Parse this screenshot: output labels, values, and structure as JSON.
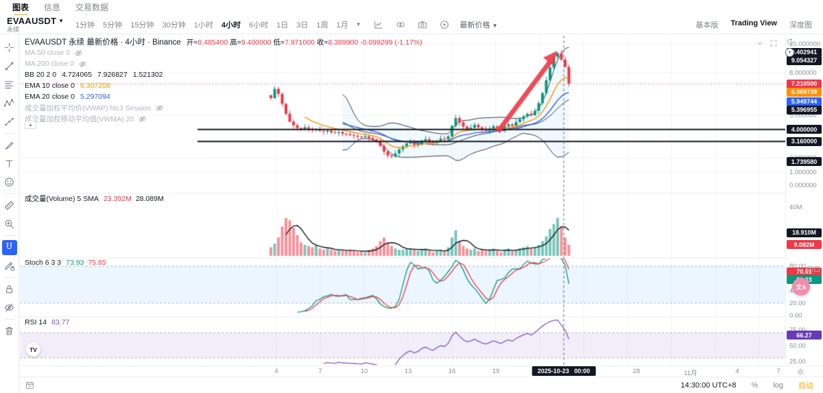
{
  "topnav": {
    "tabs": [
      {
        "label": "图表",
        "active": true
      },
      {
        "label": "信息",
        "active": false
      },
      {
        "label": "交易数据",
        "active": false
      }
    ]
  },
  "toolbar": {
    "symbol": "EVAAUSDT",
    "symbol_type": "永续",
    "intervals": [
      {
        "label": "1分钟"
      },
      {
        "label": "5分钟"
      },
      {
        "label": "15分钟"
      },
      {
        "label": "30分钟"
      },
      {
        "label": "1小时"
      },
      {
        "label": "4小时",
        "active": true
      },
      {
        "label": "6小时"
      },
      {
        "label": "1日"
      },
      {
        "label": "3日"
      },
      {
        "label": "1周"
      },
      {
        "label": "1月"
      }
    ],
    "icons": [
      {
        "name": "indicators-icon",
        "glyph": "chartline"
      },
      {
        "name": "compare-overlay-icon",
        "glyph": "compare"
      },
      {
        "name": "camera-snapshot-icon",
        "glyph": "camera"
      },
      {
        "name": "alert-plus-icon",
        "glyph": "alertPlus"
      }
    ],
    "price_source": "最新价格",
    "right_tabs": [
      {
        "label": "基本版",
        "active": false
      },
      {
        "label": "Trading View",
        "active": true
      },
      {
        "label": "深度图",
        "active": false
      }
    ]
  },
  "sidebar": {
    "tools": [
      "crosshair",
      "trendline",
      "fib",
      "pattern",
      "forecast",
      "brush",
      "text",
      "emoji",
      "ruler",
      "zoom",
      "magnet",
      "pencil-lock",
      "lock",
      "eye-off",
      "trash"
    ],
    "active_tool": "magnet"
  },
  "legend": {
    "symbol_line": "EVAAUSDT 永续 最新价格 · 4小时 · Binance",
    "ohlc": [
      {
        "k": "开=",
        "v": "8.485400"
      },
      {
        "k": "高=",
        "v": "9.400000"
      },
      {
        "k": "低=",
        "v": "7.971000"
      },
      {
        "k": "收=",
        "v": "8.389900"
      }
    ],
    "change": "-0.099299 (-1.17%)",
    "indicators": [
      {
        "label": "MA 50 close 0",
        "hidden": true,
        "values": []
      },
      {
        "label": "MA 200 close 0",
        "hidden": true,
        "values": []
      },
      {
        "label": "BB 20 2 0",
        "hidden": false,
        "values": [
          {
            "text": "4.724065",
            "color": "#131722"
          },
          {
            "text": "7.926827",
            "color": "#131722"
          },
          {
            "text": "1.521302",
            "color": "#131722"
          }
        ]
      },
      {
        "label": "EMA 10 close 0",
        "hidden": false,
        "values": [
          {
            "text": "6.307208",
            "color": "#ff9100"
          }
        ]
      },
      {
        "label": "EMA 20 close 0",
        "hidden": false,
        "values": [
          {
            "text": "5.297094",
            "color": "#2962ff"
          }
        ]
      },
      {
        "label": "成交量加权平均价(VWAP) hlc3 Session",
        "hidden": true,
        "values": []
      },
      {
        "label": "成交量加权移动平均值(VWMA) 20",
        "hidden": true,
        "values": []
      }
    ]
  },
  "panes": {
    "volume": {
      "label": "成交量(Volume) 5 SMA",
      "values": [
        {
          "text": "23.392M",
          "color": "#f23645"
        },
        {
          "text": "28.089M",
          "color": "#131722"
        }
      ],
      "axis": [
        {
          "text": "40M",
          "m": 40
        }
      ],
      "badges": [
        {
          "text": "18.910M",
          "bg": "#131722",
          "m": 18.91
        },
        {
          "text": "9.082M",
          "bg": "#f23645",
          "m": 9.082
        }
      ]
    },
    "stoch": {
      "label": "Stoch 6 3 3",
      "values": [
        {
          "text": "73.93",
          "color": "#089981"
        },
        {
          "text": "75.85",
          "color": "#f23645"
        }
      ],
      "axis": [
        {
          "text": "80.00",
          "s": 80
        },
        {
          "text": "40.00",
          "s": 40
        },
        {
          "text": "20.00",
          "s": 20
        },
        {
          "text": "0.00",
          "s": 0
        }
      ],
      "badges": [
        {
          "text": "70.91",
          "bg": "#f23645",
          "s": 70.91
        },
        {
          "text": "58.03",
          "bg": "#089981",
          "s": 58.03
        }
      ]
    },
    "rsi": {
      "label": "RSI 14",
      "values": [
        {
          "text": "83.77",
          "color": "#7e57c2"
        }
      ],
      "axis": [
        {
          "text": "75.00",
          "r": 75
        },
        {
          "text": "50.00",
          "r": 50
        },
        {
          "text": "25.00",
          "r": 25
        }
      ],
      "badges": [
        {
          "text": "66.27",
          "bg": "#673ab7",
          "r": 66.27
        }
      ]
    }
  },
  "price_axis": {
    "labels": [
      {
        "text": "10.000000",
        "v": 10
      },
      {
        "text": "8.000000",
        "v": 8
      },
      {
        "text": "5.000000",
        "v": 5
      },
      {
        "text": "2.000000",
        "v": 2
      },
      {
        "text": "1.000000",
        "v": 1
      },
      {
        "text": "0.000000",
        "v": 0.1
      }
    ],
    "badges": [
      {
        "text": "9.402941",
        "v": 9.402941,
        "bg": "#131722",
        "name": "crosshair-price-badge"
      },
      {
        "text": "9.054327",
        "v": 9.054327,
        "bg": "#131722",
        "name": "bb-upper-badge"
      },
      {
        "text": "7.210500",
        "v": 7.2105,
        "bg": "#f23645",
        "name": "last-price-badge"
      },
      {
        "text": "6.969739",
        "v": 6.969739,
        "bg": "#ff9100",
        "name": "ema10-badge"
      },
      {
        "text": "5.949744",
        "v": 5.949744,
        "bg": "#2962ff",
        "name": "ema20-badge"
      },
      {
        "text": "5.396955",
        "v": 5.396955,
        "bg": "#131722",
        "name": "bb-basis-badge"
      },
      {
        "text": "4.000000",
        "v": 4.0,
        "bg": "#131722",
        "name": "level-4-badge"
      },
      {
        "text": "3.160000",
        "v": 3.16,
        "bg": "#131722",
        "name": "level-316-badge"
      },
      {
        "text": "1.739580",
        "v": 1.73958,
        "bg": "#131722",
        "name": "bb-lower-badge"
      }
    ]
  },
  "time_axis": {
    "ticks": [
      "4",
      "7",
      "10",
      "13",
      "16",
      "19",
      "22",
      "25",
      "28",
      "11月",
      "4",
      "7"
    ],
    "crosshair_badge": "2025-10-23   00:00"
  },
  "status_bar": {
    "clock": "14:30:00 UTC+8",
    "percent_label": "%",
    "log_label": "log",
    "auto_label": "自动"
  },
  "floating": {
    "translate_label": "文A",
    "tv_logo_label": "TV"
  },
  "chart_data": {
    "type": "candlestick",
    "symbol": "EVAAUSDT",
    "interval": "4小时",
    "exchange": "Binance",
    "ylim": [
      0,
      10
    ],
    "hovered_ohlc": {
      "open": 8.4854,
      "high": 9.4,
      "low": 7.971,
      "close": 8.3899,
      "change": -0.099299,
      "change_pct": -1.17
    },
    "last_price": 7.2105,
    "levels": [
      4.0,
      3.16
    ],
    "bb": {
      "period": 20,
      "mult": 2
    },
    "ema_periods": [
      10,
      20
    ],
    "stoch_params": [
      6,
      3,
      3
    ],
    "rsi_period": 14,
    "close": [
      6.2,
      6.85,
      6.5,
      5.8,
      5.1,
      4.55,
      4.3,
      4.1,
      4.0,
      4.15,
      4.05,
      3.95,
      4.02,
      3.9,
      3.85,
      3.92,
      3.8,
      3.76,
      3.82,
      3.7,
      3.66,
      3.6,
      3.56,
      3.5,
      3.46,
      3.52,
      3.4,
      3.3,
      3.18,
      2.85,
      2.45,
      2.18,
      2.1,
      2.32,
      2.6,
      2.82,
      3.02,
      3.12,
      2.92,
      3.02,
      3.22,
      3.32,
      3.15,
      3.05,
      3.22,
      3.36,
      3.3,
      3.52,
      4.25,
      4.8,
      4.5,
      4.2,
      4.02,
      4.12,
      4.32,
      4.15,
      4.0,
      3.92,
      4.06,
      4.22,
      4.12,
      4.02,
      4.22,
      4.36,
      4.26,
      4.52,
      4.72,
      4.92,
      5.1,
      5.0,
      5.32,
      5.85,
      6.55,
      7.45,
      8.35,
      9.1,
      9.35,
      8.9,
      8.39,
      7.21
    ],
    "volume": [
      7,
      10,
      15,
      24,
      31,
      29,
      23,
      17,
      11,
      9,
      8,
      7,
      9,
      6,
      5,
      6,
      5,
      4,
      5,
      4,
      4,
      5,
      4,
      3,
      4,
      3,
      5,
      6,
      8,
      12,
      15,
      11,
      8,
      6,
      5,
      5,
      6,
      6,
      5,
      4,
      5,
      6,
      4,
      3,
      4,
      5,
      4,
      7,
      15,
      21,
      12,
      8,
      6,
      5,
      6,
      4,
      5,
      4,
      5,
      6,
      4,
      3,
      5,
      6,
      4,
      5,
      6,
      7,
      8,
      6,
      7,
      9,
      12,
      16,
      22,
      26,
      31,
      24,
      15,
      9
    ]
  }
}
